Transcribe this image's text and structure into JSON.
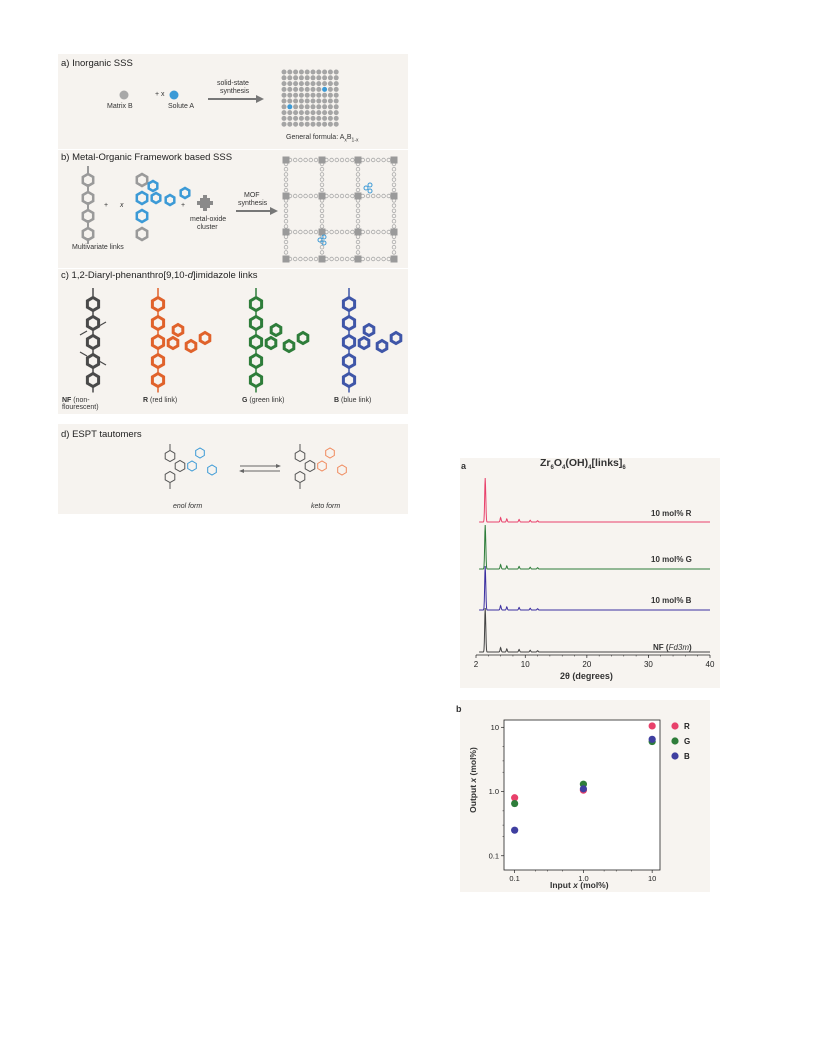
{
  "panels": {
    "a": {
      "title": "a) Inorganic SSS",
      "matrix_label": "Matrix B",
      "plus_x": "+ x",
      "solute_label": "Solute A",
      "arrow_label_1": "solid-state",
      "arrow_label_2": "synthesis",
      "formula": "General formula: A",
      "formula_sub1": "x",
      "formula_mid": "B",
      "formula_sub2": "1-x"
    },
    "b": {
      "title": "b) Metal-Organic Framework based SSS",
      "plus1": "+",
      "x": "x",
      "plus2": "+",
      "cluster_label_1": "metal-oxide",
      "cluster_label_2": "cluster",
      "arrow_label_1": "MOF",
      "arrow_label_2": "synthesis",
      "links_label": "Multivariate links"
    },
    "c": {
      "title": "c) 1,2-Diaryl-phenanthro[9,10-",
      "title_italic": "d",
      "title_end": "]imidazole links",
      "links": [
        {
          "code": "NF",
          "desc": " (non-",
          "desc2": "flourescent)",
          "color": "#4a4a4a"
        },
        {
          "code": "R",
          "desc": " (red link)",
          "desc2": "",
          "color": "#e0622b"
        },
        {
          "code": "G",
          "desc": " (green link)",
          "desc2": "",
          "color": "#2e7d3a"
        },
        {
          "code": "B",
          "desc": " (blue link)",
          "desc2": "",
          "color": "#3f56a8"
        }
      ]
    },
    "d": {
      "title": "d) ESPT tautomers",
      "enol": "enol form",
      "keto": "keto form"
    }
  },
  "chart_a": {
    "panel_letter": "a",
    "title": "Zr6O4(OH)4[links]6",
    "title_parts": {
      "p1": "Zr",
      "s1": "6",
      "p2": "O",
      "s2": "4",
      "p3": "(OH)",
      "s3": "4",
      "p4": "[links]",
      "s4": "6"
    },
    "xlabel": "2θ (degrees)",
    "xticks": [
      "2",
      "10",
      "20",
      "30",
      "40"
    ],
    "traces": [
      {
        "name": "10 mol% R",
        "color": "#e8416b"
      },
      {
        "name": "10 mol% G",
        "color": "#2e7d3a"
      },
      {
        "name": "10 mol% B",
        "color": "#3b2fa0"
      },
      {
        "name": "NF (Fd3m)",
        "name_prefix": "NF (",
        "name_italic": "Fd3m",
        "name_suffix": ")",
        "color": "#444444"
      }
    ]
  },
  "chart_data": {
    "type": "scatter",
    "panel_letter": "b",
    "xlabel": "Input x (mol%)",
    "xlabel_prefix": "Input ",
    "xlabel_italic": "x",
    "xlabel_suffix": " (mol%)",
    "ylabel": "Output x (mol%)",
    "ylabel_prefix": "Output ",
    "ylabel_italic": "x",
    "ylabel_suffix": " (mol%)",
    "x_scale": "log",
    "y_scale": "log",
    "xlim": [
      0.07,
      13
    ],
    "ylim": [
      0.06,
      13
    ],
    "xticks": [
      "0.1",
      "1.0",
      "10"
    ],
    "yticks": [
      "0.1",
      "1.0",
      "10"
    ],
    "legend_position": "top-right, outside",
    "series": [
      {
        "name": "R",
        "color": "#e8416b",
        "points": [
          [
            0.1,
            0.8
          ],
          [
            1.0,
            1.05
          ],
          [
            10,
            10.5
          ]
        ]
      },
      {
        "name": "G",
        "color": "#2e7d3a",
        "points": [
          [
            0.1,
            0.65
          ],
          [
            1.0,
            1.3
          ],
          [
            10,
            6.0
          ]
        ]
      },
      {
        "name": "B",
        "color": "#3f3fa0",
        "points": [
          [
            0.1,
            0.25
          ],
          [
            1.0,
            1.1
          ],
          [
            10,
            6.5
          ]
        ]
      }
    ]
  }
}
